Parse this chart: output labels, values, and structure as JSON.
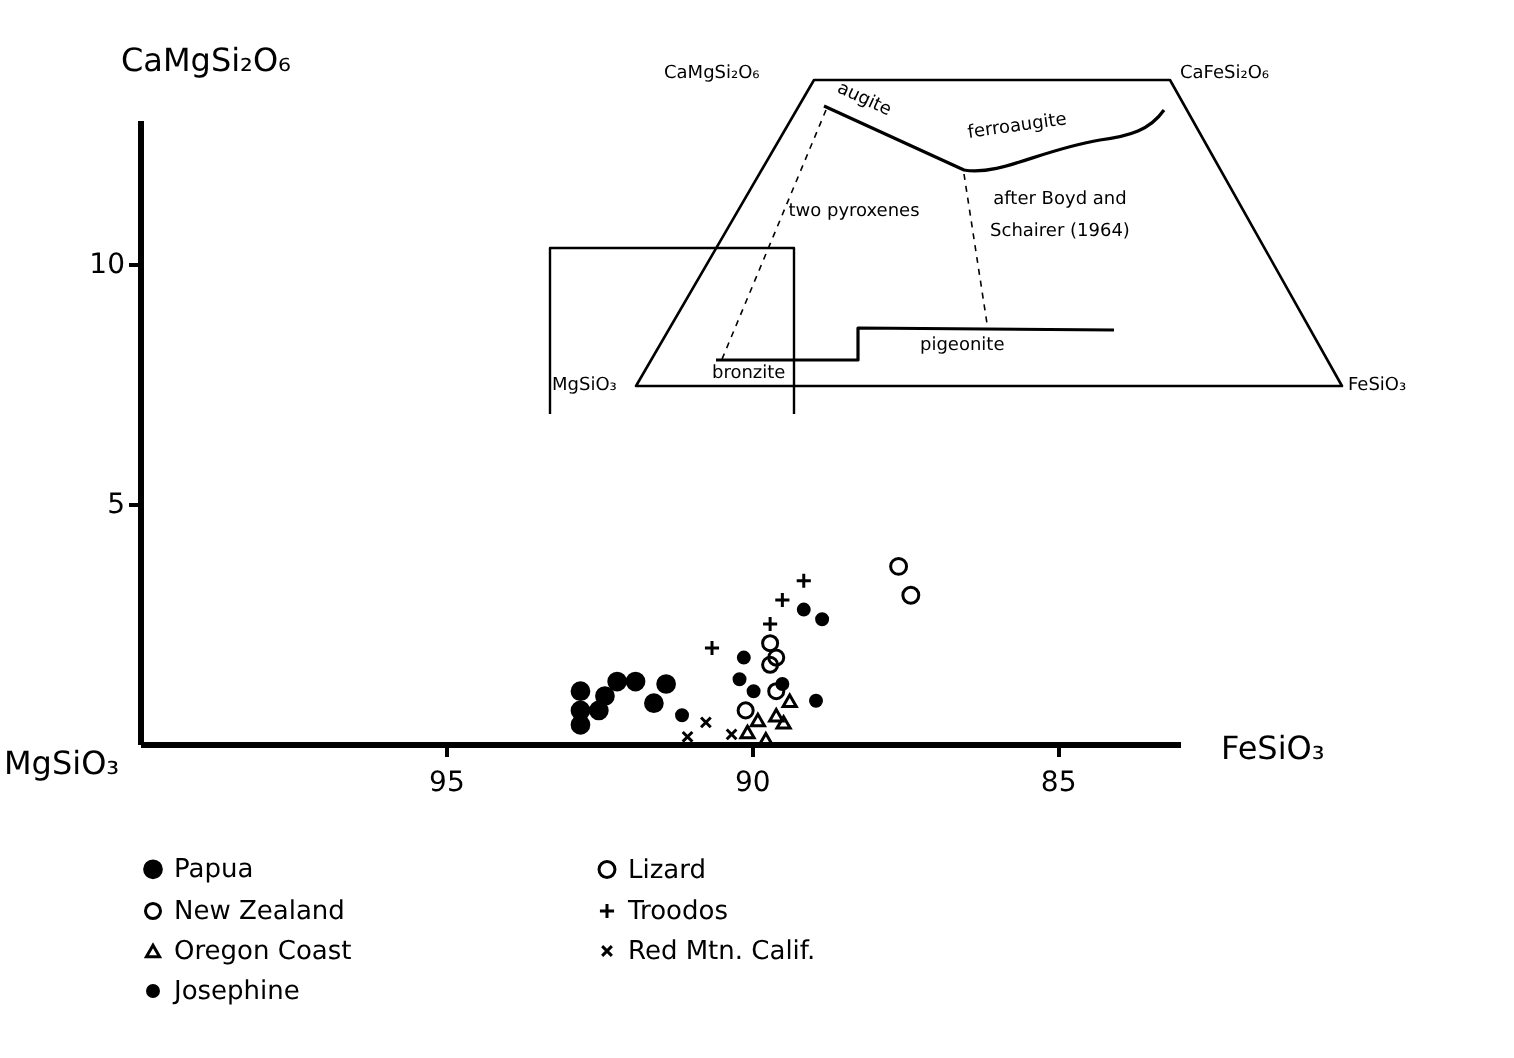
{
  "chart_data": {
    "type": "scatter",
    "xlabel": "FeSiO₃",
    "ylabel": "CaMgSi₂O₆",
    "xlim": [
      100,
      83
    ],
    "xticks": [
      95,
      90,
      85
    ],
    "ylim": [
      0,
      13
    ],
    "yticks": [
      5,
      10
    ],
    "grid": false,
    "legend": "bottom",
    "series": [
      {
        "name": "Papua",
        "color": "#000000",
        "x": [
          92.2,
          91.9,
          91.6,
          92.8,
          92.4,
          92.8,
          92.5,
          92.8,
          91.4
        ],
        "values": [
          1.3,
          1.3,
          0.85,
          1.1,
          1.0,
          0.7,
          0.7,
          0.4,
          1.25
        ]
      },
      {
        "name": "Lizard",
        "color": "#000000",
        "marker": "circle",
        "x": [
          87.6,
          87.4
        ],
        "values": [
          3.7,
          3.1
        ]
      },
      {
        "name": "New Zealand",
        "color": "#000000",
        "marker": "circle",
        "x": [
          89.7,
          89.6,
          89.7,
          89.6,
          90.1
        ],
        "values": [
          2.1,
          1.8,
          1.65,
          1.1,
          0.7
        ]
      },
      {
        "name": "Troodos",
        "color": "#000000",
        "marker": "cross",
        "x": [
          89.15,
          89.5,
          89.7,
          90.65
        ],
        "values": [
          3.4,
          3.0,
          2.5,
          2.0
        ]
      },
      {
        "name": "Oregon Coast",
        "color": "#000000",
        "marker": "triangle",
        "x": [
          90.07,
          89.77,
          89.38,
          89.6,
          89.48,
          89.9
        ],
        "values": [
          0.25,
          0.1,
          0.9,
          0.6,
          0.45,
          0.5
        ]
      },
      {
        "name": "Red Mtn. Calif.",
        "color": "#000000",
        "marker": "x",
        "x": [
          90.75,
          91.05,
          90.33
        ],
        "values": [
          0.45,
          0.15,
          0.2
        ]
      },
      {
        "name": "Josephine",
        "color": "#000000",
        "x": [
          89.15,
          88.85,
          90.13,
          90.2,
          89.97,
          89.5,
          88.95,
          91.14
        ],
        "values": [
          2.8,
          2.6,
          1.8,
          1.35,
          1.1,
          1.25,
          0.9,
          0.6
        ]
      }
    ],
    "annotations": [
      "MgSiO₃",
      "CaMgSi₂O₆",
      "CaFeSi₂O₆",
      "MgSiO₃",
      "FeSiO₃",
      "augite",
      "ferroaugite",
      "two pyroxenes",
      "after Boyd and Schairer (1964)",
      "bronzite",
      "pigeonite"
    ]
  }
}
